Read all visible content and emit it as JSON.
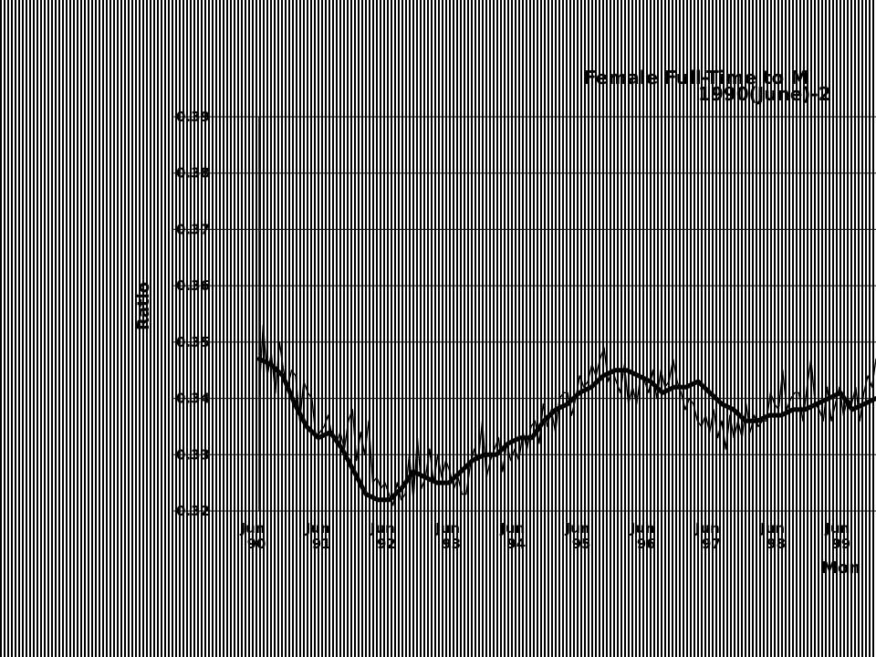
{
  "chart_data": {
    "type": "line",
    "title": "Female Full-Time to M",
    "subtitle": "1990(June)-2",
    "ylabel": "Ratio",
    "xlabel": "Mon",
    "ylim": [
      0.32,
      0.39
    ],
    "yticks": [
      "0.32",
      "0.33",
      "0.34",
      "0.35",
      "0.36",
      "0.37",
      "0.38",
      "0.39"
    ],
    "x_tick_labels": [
      {
        "month": "Jun",
        "year": "90"
      },
      {
        "month": "Jun",
        "year": "91"
      },
      {
        "month": "Jun",
        "year": "92"
      },
      {
        "month": "Jun",
        "year": "93"
      },
      {
        "month": "Jun",
        "year": "94"
      },
      {
        "month": "Jun",
        "year": "95"
      },
      {
        "month": "Jun",
        "year": "96"
      },
      {
        "month": "Jun",
        "year": "97"
      },
      {
        "month": "Jun",
        "year": "98"
      },
      {
        "month": "Jun",
        "year": "99"
      }
    ],
    "grid": true,
    "background_pattern": "vertical-hatch",
    "line_color": "#000000",
    "series": [
      {
        "style": "thin",
        "values": [
          0.341,
          0.353,
          0.344,
          0.348,
          0.341,
          0.35,
          0.345,
          0.342,
          0.345,
          0.344,
          0.336,
          0.343,
          0.341,
          0.34,
          0.333,
          0.334,
          0.335,
          0.337,
          0.333,
          0.332,
          0.334,
          0.331,
          0.336,
          0.338,
          0.329,
          0.334,
          0.33,
          0.336,
          0.325,
          0.326,
          0.324,
          0.325,
          0.323,
          0.321,
          0.325,
          0.322,
          0.323,
          0.33,
          0.322,
          0.333,
          0.324,
          0.326,
          0.331,
          0.325,
          0.33,
          0.326,
          0.329,
          0.327,
          0.324,
          0.326,
          0.323,
          0.323,
          0.328,
          0.331,
          0.329,
          0.336,
          0.326,
          0.329,
          0.331,
          0.333,
          0.327,
          0.332,
          0.329,
          0.331,
          0.329,
          0.334,
          0.331,
          0.335,
          0.336,
          0.332,
          0.339,
          0.335,
          0.338,
          0.334,
          0.34,
          0.341,
          0.341,
          0.337,
          0.34,
          0.344,
          0.342,
          0.343,
          0.346,
          0.344,
          0.347,
          0.349,
          0.343,
          0.345,
          0.343,
          0.341,
          0.346,
          0.339,
          0.342,
          0.339,
          0.344,
          0.343,
          0.341,
          0.345,
          0.34,
          0.345,
          0.342,
          0.343,
          0.347,
          0.343,
          0.341,
          0.338,
          0.34,
          0.339,
          0.336,
          0.335,
          0.337,
          0.334,
          0.338,
          0.333,
          0.336,
          0.331,
          0.337,
          0.333,
          0.336,
          0.333,
          0.339,
          0.334,
          0.337,
          0.335,
          0.336,
          0.336,
          0.341,
          0.339,
          0.338,
          0.345,
          0.338,
          0.34,
          0.341,
          0.341,
          0.336,
          0.342,
          0.347,
          0.339,
          0.338,
          0.336,
          0.342,
          0.336,
          0.339,
          0.342,
          0.337,
          0.34,
          0.339,
          0.342,
          0.336,
          0.341,
          0.344,
          0.342,
          0.347
        ]
      },
      {
        "style": "thick",
        "values": [
          0.347,
          0.346,
          0.344,
          0.339,
          0.335,
          0.333,
          0.334,
          0.331,
          0.327,
          0.323,
          0.322,
          0.322,
          0.324,
          0.327,
          0.326,
          0.325,
          0.325,
          0.327,
          0.329,
          0.33,
          0.33,
          0.332,
          0.333,
          0.333,
          0.336,
          0.338,
          0.339,
          0.341,
          0.342,
          0.344,
          0.345,
          0.345,
          0.344,
          0.343,
          0.341,
          0.342,
          0.342,
          0.343,
          0.341,
          0.339,
          0.338,
          0.336,
          0.336,
          0.337,
          0.337,
          0.338,
          0.338,
          0.339,
          0.34,
          0.341,
          0.338,
          0.339,
          0.34
        ]
      }
    ]
  }
}
